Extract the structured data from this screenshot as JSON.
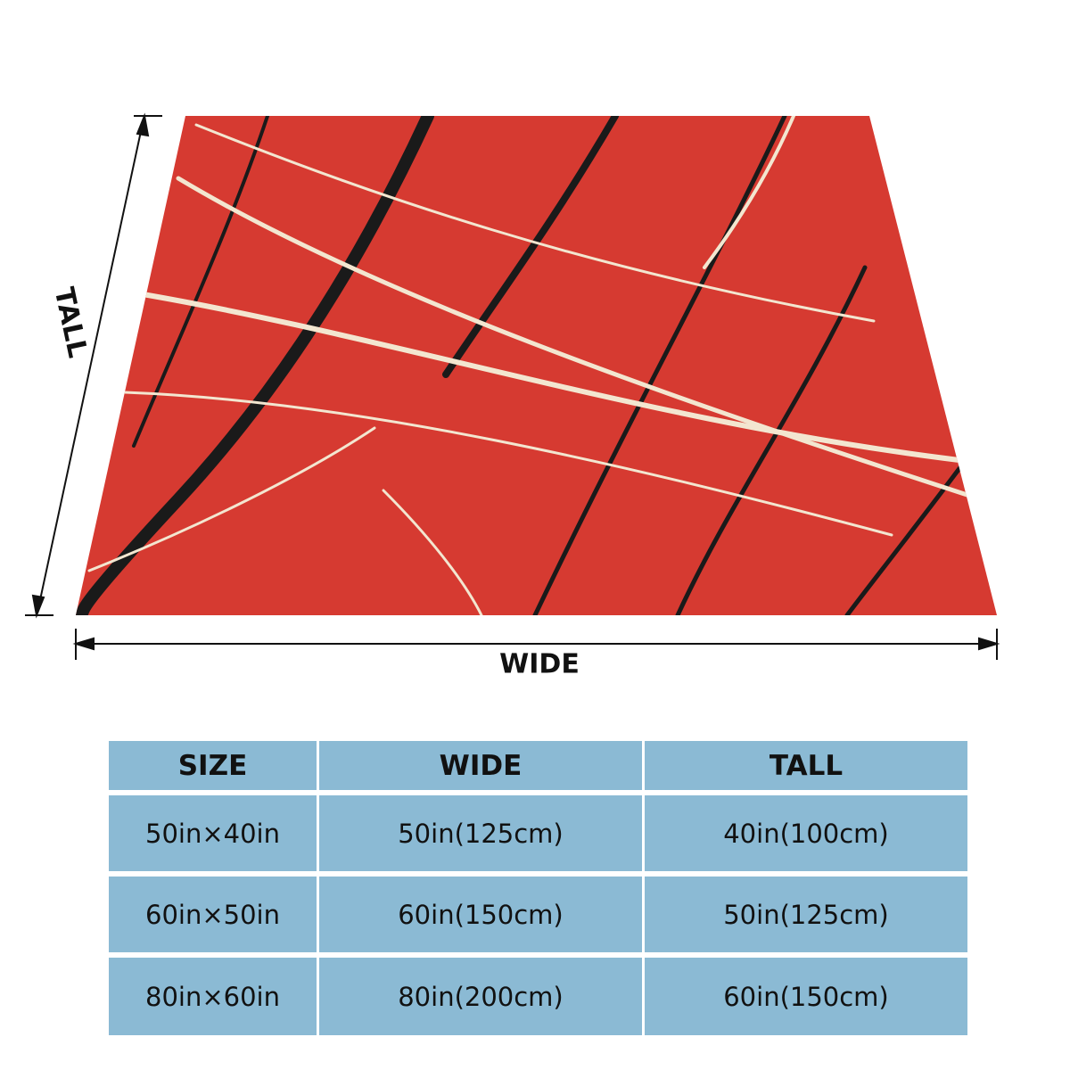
{
  "labels": {
    "tall": "TALL",
    "wide": "WIDE"
  },
  "table": {
    "header": [
      "SIZE",
      "WIDE",
      "TALL"
    ],
    "rows": [
      [
        "50in×40in",
        "50in(125cm)",
        "40in(100cm)"
      ],
      [
        "60in×50in",
        "60in(150cm)",
        "50in(125cm)"
      ],
      [
        "80in×60in",
        "80in(200cm)",
        "60in(150cm)"
      ]
    ]
  }
}
